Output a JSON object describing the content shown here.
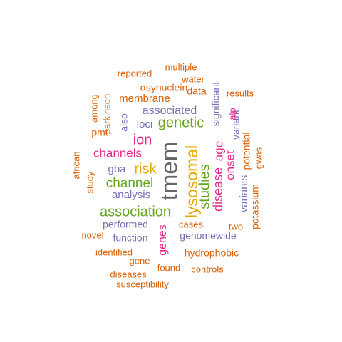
{
  "colors": {
    "orange": "#D95F02",
    "purple": "#7570B3",
    "magenta": "#E7298A",
    "green": "#66A61E",
    "gold": "#E6AB02",
    "gray": "#666666",
    "background": "#FFFFFF"
  },
  "words": [
    {
      "text": "tmem",
      "color": "gray"
    },
    {
      "text": "lysosomal",
      "color": "gold"
    },
    {
      "text": "studies",
      "color": "green"
    },
    {
      "text": "disease",
      "color": "magenta"
    },
    {
      "text": "age",
      "color": "magenta"
    },
    {
      "text": "onset",
      "color": "magenta"
    },
    {
      "text": "variants",
      "color": "purple"
    },
    {
      "text": "variant",
      "color": "purple"
    },
    {
      "text": "significant",
      "color": "purple"
    },
    {
      "text": "alp",
      "color": "magenta"
    },
    {
      "text": "potential",
      "color": "orange"
    },
    {
      "text": "potassium",
      "color": "orange"
    },
    {
      "text": "gwas",
      "color": "orange"
    },
    {
      "text": "genetic",
      "color": "green"
    },
    {
      "text": "associated",
      "color": "purple"
    },
    {
      "text": "ion",
      "color": "magenta"
    },
    {
      "text": "risk",
      "color": "gold"
    },
    {
      "text": "channel",
      "color": "green"
    },
    {
      "text": "channels",
      "color": "magenta"
    },
    {
      "text": "association",
      "color": "green"
    },
    {
      "text": "gba",
      "color": "purple"
    },
    {
      "text": "analysis",
      "color": "purple"
    },
    {
      "text": "loci",
      "color": "purple"
    },
    {
      "text": "also",
      "color": "purple"
    },
    {
      "text": "parkinson",
      "color": "orange"
    },
    {
      "text": "among",
      "color": "orange"
    },
    {
      "text": "pmt",
      "color": "orange"
    },
    {
      "text": "membrane",
      "color": "orange"
    },
    {
      "text": "αsynuclein",
      "color": "orange"
    },
    {
      "text": "reported",
      "color": "orange"
    },
    {
      "text": "multiple",
      "color": "orange"
    },
    {
      "text": "water",
      "color": "orange"
    },
    {
      "text": "data",
      "color": "orange"
    },
    {
      "text": "results",
      "color": "orange"
    },
    {
      "text": "african",
      "color": "orange"
    },
    {
      "text": "study",
      "color": "orange"
    },
    {
      "text": "performed",
      "color": "purple"
    },
    {
      "text": "function",
      "color": "purple"
    },
    {
      "text": "novel",
      "color": "orange"
    },
    {
      "text": "genes",
      "color": "magenta"
    },
    {
      "text": "cases",
      "color": "orange"
    },
    {
      "text": "genomewide",
      "color": "purple"
    },
    {
      "text": "two",
      "color": "orange"
    },
    {
      "text": "identified",
      "color": "orange"
    },
    {
      "text": "gene",
      "color": "orange"
    },
    {
      "text": "hydrophobic",
      "color": "orange"
    },
    {
      "text": "found",
      "color": "orange"
    },
    {
      "text": "controls",
      "color": "orange"
    },
    {
      "text": "diseases",
      "color": "orange"
    },
    {
      "text": "susceptibility",
      "color": "orange"
    }
  ]
}
